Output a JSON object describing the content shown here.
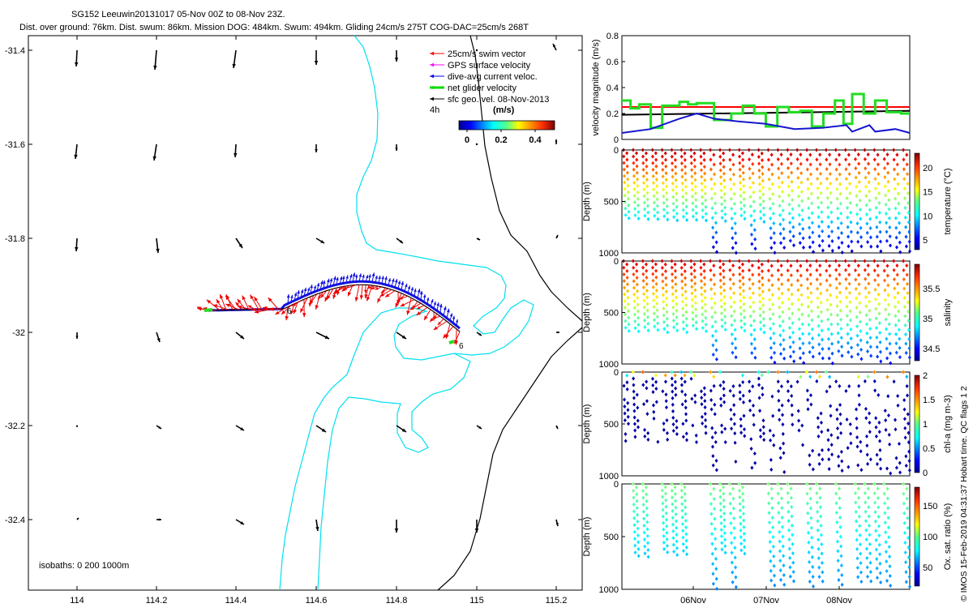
{
  "header": {
    "title": "SG152 Leeuwin20131017 05-Nov 00Z to 08-Nov 23Z.",
    "subtitle": "Dist. over ground: 76km. Dist. swum: 86km. Mission DOG: 484km. Swum: 494km. Gliding 24cm/s 275T COG-DAC=25cm/s 268T"
  },
  "map": {
    "x_ticks": [
      "114",
      "114.2",
      "114.4",
      "114.6",
      "114.8",
      "115",
      "115.2"
    ],
    "y_ticks": [
      "-31.4",
      "-31.6",
      "-31.8",
      "-32",
      "-32.2",
      "-32.4"
    ],
    "legend": [
      {
        "label": "25cm/s swim vector",
        "color": "#ff0000"
      },
      {
        "label": "GPS surface velocity",
        "color": "#ff00ff"
      },
      {
        "label": "dive-avg current veloc.",
        "color": "#0000ff"
      },
      {
        "label": "net glider velocity",
        "color": "#00dd00"
      },
      {
        "label": "sfc geo. vel. 08-Nov-2013",
        "color": "#000000"
      }
    ],
    "interval_label": "4h",
    "colorbar_unit": "(m/s)",
    "colorbar_ticks": [
      "0",
      "0.2",
      "0.4"
    ],
    "isobaths_label": "isobaths: 0   200  1000m",
    "track_marker": "6"
  },
  "chart_data": [
    {
      "type": "line",
      "ylabel": "velocity magnitude (m/s)",
      "yticks": [
        "0",
        "0.2",
        "0.4",
        "0.6",
        "0.8"
      ],
      "ylim": [
        0,
        0.8
      ],
      "series": [
        {
          "name": "swim",
          "color": "#ff0000",
          "x": [
            0,
            1
          ],
          "values": [
            0.25,
            0.25
          ]
        },
        {
          "name": "sfc geo",
          "color": "#000000",
          "x": [
            0,
            1
          ],
          "values": [
            0.19,
            0.22
          ]
        },
        {
          "name": "net glider velocity",
          "color": "#22dd22",
          "x": [
            0,
            0.03,
            0.03,
            0.06,
            0.06,
            0.1,
            0.1,
            0.14,
            0.14,
            0.2,
            0.2,
            0.23,
            0.23,
            0.26,
            0.26,
            0.32,
            0.32,
            0.38,
            0.38,
            0.42,
            0.42,
            0.46,
            0.46,
            0.5,
            0.5,
            0.54,
            0.54,
            0.58,
            0.58,
            0.62,
            0.62,
            0.66,
            0.66,
            0.7,
            0.7,
            0.74,
            0.74,
            0.77,
            0.77,
            0.8,
            0.8,
            0.84,
            0.84,
            0.88,
            0.88,
            0.92,
            0.92,
            0.97,
            0.97,
            1
          ],
          "values": [
            0.3,
            0.3,
            0.24,
            0.24,
            0.27,
            0.27,
            0.09,
            0.09,
            0.26,
            0.26,
            0.29,
            0.29,
            0.27,
            0.27,
            0.28,
            0.28,
            0.15,
            0.15,
            0.2,
            0.2,
            0.26,
            0.26,
            0.2,
            0.2,
            0.1,
            0.1,
            0.25,
            0.25,
            0.21,
            0.21,
            0.22,
            0.22,
            0.1,
            0.1,
            0.2,
            0.2,
            0.3,
            0.3,
            0.12,
            0.12,
            0.35,
            0.35,
            0.2,
            0.2,
            0.3,
            0.3,
            0.21,
            0.21,
            0.2,
            0.2
          ]
        },
        {
          "name": "dive-avg current",
          "color": "#1515d0",
          "x": [
            0,
            0.1,
            0.2,
            0.26,
            0.32,
            0.4,
            0.5,
            0.6,
            0.7,
            0.78,
            0.8,
            0.86,
            0.88,
            0.95,
            1
          ],
          "values": [
            0.05,
            0.08,
            0.16,
            0.2,
            0.16,
            0.14,
            0.12,
            0.08,
            0.09,
            0.11,
            0.06,
            0.11,
            0.06,
            0.08,
            0.05
          ]
        }
      ]
    },
    {
      "type": "scatter",
      "variable": "temperature",
      "ylabel": "Depth (m)",
      "yticks": [
        "0",
        "500",
        "1000"
      ],
      "ylim": [
        1000,
        0
      ],
      "colorbar_label": "temperature (°C)",
      "colorbar_ticks": [
        "5",
        "10",
        "15",
        "20"
      ],
      "clim": [
        3,
        23
      ]
    },
    {
      "type": "scatter",
      "variable": "salinity",
      "ylabel": "Depth (m)",
      "yticks": [
        "0",
        "500",
        "1000"
      ],
      "ylim": [
        1000,
        0
      ],
      "colorbar_label": "salinity",
      "colorbar_ticks": [
        "34.5",
        "35",
        "35.5"
      ],
      "clim": [
        34.3,
        35.9
      ]
    },
    {
      "type": "scatter",
      "variable": "chl-a",
      "ylabel": "Depth (m)",
      "yticks": [
        "0",
        "500",
        "1000"
      ],
      "ylim": [
        1000,
        0
      ],
      "colorbar_label": "chl-a (mg m-3)",
      "colorbar_ticks": [
        "0",
        "0.5",
        "1",
        "1.5",
        "2"
      ],
      "clim": [
        0,
        2
      ]
    },
    {
      "type": "scatter",
      "variable": "oxygen",
      "ylabel": "Depth (m)",
      "yticks": [
        "0",
        "500",
        "1000"
      ],
      "ylim": [
        1000,
        0
      ],
      "colorbar_label": "Ox. sat. ratio (%)",
      "colorbar_ticks": [
        "50",
        "100",
        "150"
      ],
      "clim": [
        20,
        180
      ],
      "xticks": [
        "06Nov",
        "07Nov",
        "08Nov"
      ]
    }
  ],
  "footer": {
    "credit": "© IMOS 15-Feb-2019 04:31:37 Hobart time. QC flags 1 2"
  }
}
